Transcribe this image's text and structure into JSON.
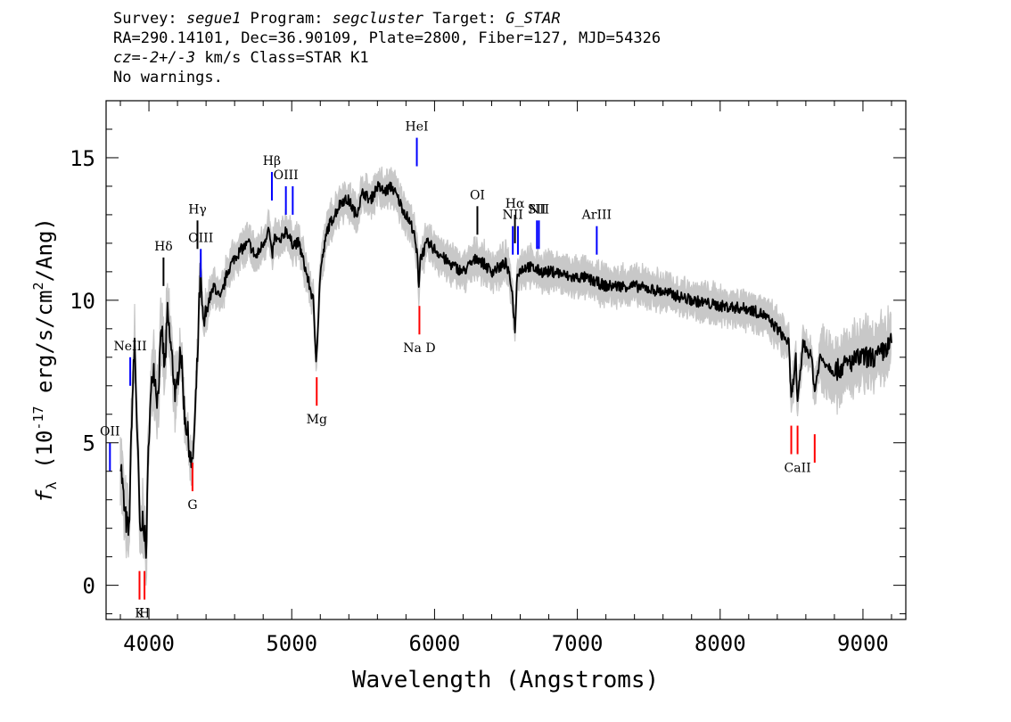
{
  "header": {
    "line1": {
      "survey_label": "Survey: ",
      "survey": "segue1",
      "program_label": " Program: ",
      "program": "segcluster",
      "target_label": " Target: ",
      "target": "G_STAR"
    },
    "line2": "RA=290.14101, Dec=36.90109, Plate=2800, Fiber=127, MJD=54326",
    "line3": {
      "cz": "cz=-2+/-3",
      "rest": " km/s Class=STAR K1"
    },
    "line4": "No warnings."
  },
  "chart_data": {
    "type": "line",
    "xlabel": "Wavelength (Angstroms)",
    "ylabel": "f_λ (10^-17 erg/s/cm^2/Ang)",
    "xlim": [
      3700,
      9300
    ],
    "ylim": [
      -1.2,
      17
    ],
    "x_ticks": [
      4000,
      5000,
      6000,
      7000,
      8000,
      9000
    ],
    "y_ticks": [
      0,
      5,
      10,
      15
    ],
    "series": [
      {
        "color": "#000000",
        "error_color": "#c8c8c8",
        "x": [
          3800,
          3830,
          3860,
          3880,
          3900,
          3920,
          3940,
          3960,
          3980,
          4000,
          4030,
          4060,
          4090,
          4110,
          4130,
          4160,
          4190,
          4220,
          4250,
          4280,
          4300,
          4320,
          4340,
          4360,
          4380,
          4420,
          4460,
          4500,
          4550,
          4600,
          4650,
          4700,
          4750,
          4800,
          4840,
          4861,
          4880,
          4920,
          4960,
          5000,
          5050,
          5100,
          5150,
          5170,
          5183,
          5200,
          5250,
          5300,
          5350,
          5400,
          5450,
          5500,
          5550,
          5600,
          5650,
          5700,
          5750,
          5800,
          5850,
          5880,
          5890,
          5900,
          5950,
          6000,
          6100,
          6200,
          6300,
          6400,
          6500,
          6540,
          6563,
          6580,
          6650,
          6750,
          6850,
          6950,
          7050,
          7200,
          7400,
          7600,
          7800,
          8000,
          8200,
          8300,
          8400,
          8480,
          8498,
          8530,
          8542,
          8580,
          8640,
          8662,
          8700,
          8800,
          8900,
          9000,
          9100,
          9200
        ],
        "y": [
          4.5,
          2.5,
          1.8,
          6.0,
          8.5,
          5.0,
          1.5,
          2.5,
          1.0,
          5.5,
          7.8,
          6.5,
          9.0,
          7.5,
          9.5,
          8.0,
          6.5,
          8.5,
          6.0,
          5.0,
          4.0,
          5.5,
          8.0,
          11.0,
          9.0,
          10.0,
          10.5,
          10.0,
          11.0,
          11.5,
          11.8,
          12.0,
          11.5,
          12.0,
          12.5,
          11.5,
          12.2,
          12.0,
          12.5,
          12.0,
          12.0,
          11.0,
          10.0,
          8.0,
          9.0,
          11.0,
          12.5,
          13.0,
          13.5,
          13.5,
          13.0,
          13.8,
          13.5,
          14.0,
          13.8,
          14.0,
          13.5,
          13.0,
          12.5,
          11.5,
          10.5,
          11.5,
          12.0,
          11.8,
          11.3,
          11.0,
          11.5,
          11.0,
          11.3,
          10.5,
          9.0,
          11.0,
          11.2,
          11.0,
          11.0,
          10.8,
          10.8,
          10.5,
          10.5,
          10.3,
          10.0,
          9.8,
          9.7,
          9.5,
          9.0,
          8.5,
          6.5,
          8.0,
          6.3,
          8.5,
          8.0,
          6.8,
          8.0,
          7.5,
          7.8,
          8.0,
          8.0,
          8.5
        ]
      }
    ],
    "annotations": [
      {
        "label": "OII",
        "x": 3727,
        "color": "blue",
        "position": "below",
        "y0": 4.0,
        "y1": 5.0
      },
      {
        "label": "NeIII",
        "x": 3869,
        "color": "blue",
        "position": "below",
        "y0": 7.0,
        "y1": 8.0
      },
      {
        "label": "Hδ",
        "x": 4102,
        "color": "black",
        "position": "below",
        "y0": 10.5,
        "y1": 11.5
      },
      {
        "label": "Hγ",
        "x": 4340,
        "color": "black",
        "position": "below",
        "y0": 11.8,
        "y1": 12.8
      },
      {
        "label": "OIII",
        "x": 4363,
        "color": "blue",
        "position": "below",
        "y0": 10.8,
        "y1": 11.8
      },
      {
        "label": "Hβ",
        "x": 4861,
        "color": "blue",
        "position": "below",
        "y0": 13.5,
        "y1": 14.5
      },
      {
        "label": "OIII",
        "x": 4959,
        "color": "blue",
        "position": "below",
        "y0": 13.0,
        "y1": 14.0
      },
      {
        "label": "",
        "x": 5007,
        "color": "blue",
        "position": "below",
        "y0": 13.0,
        "y1": 14.0
      },
      {
        "label": "HeI",
        "x": 5876,
        "color": "blue",
        "position": "below",
        "y0": 14.7,
        "y1": 15.7
      },
      {
        "label": "OI",
        "x": 6300,
        "color": "black",
        "position": "below",
        "y0": 12.3,
        "y1": 13.3
      },
      {
        "label": "NII",
        "x": 6548,
        "color": "blue",
        "position": "below",
        "y0": 11.6,
        "y1": 12.6
      },
      {
        "label": "Hα",
        "x": 6563,
        "color": "black",
        "position": "below",
        "y0": 12.0,
        "y1": 13.0
      },
      {
        "label": "",
        "x": 6584,
        "color": "blue",
        "position": "below",
        "y0": 11.6,
        "y1": 12.6
      },
      {
        "label": "SII",
        "x": 6717,
        "color": "blue",
        "position": "below",
        "y0": 11.8,
        "y1": 12.8
      },
      {
        "label": "NII",
        "x": 6731,
        "color": "blue",
        "position": "below",
        "y0": 11.8,
        "y1": 12.8
      },
      {
        "label": "ArIII",
        "x": 7136,
        "color": "blue",
        "position": "below",
        "y0": 11.6,
        "y1": 12.6
      },
      {
        "label": "K",
        "x": 3934,
        "color": "red",
        "position": "above",
        "y0": -0.5,
        "y1": 0.5
      },
      {
        "label": "H",
        "x": 3969,
        "color": "red",
        "position": "above",
        "y0": -0.5,
        "y1": 0.5
      },
      {
        "label": "G",
        "x": 4305,
        "color": "red",
        "position": "above",
        "y0": 3.3,
        "y1": 4.3
      },
      {
        "label": "Mg",
        "x": 5175,
        "color": "red",
        "position": "above",
        "y0": 6.3,
        "y1": 7.3
      },
      {
        "label": "Na D",
        "x": 5894,
        "color": "red",
        "position": "above",
        "y0": 8.8,
        "y1": 9.8
      },
      {
        "label": "",
        "x": 8498,
        "color": "red",
        "position": "above",
        "y0": 4.6,
        "y1": 5.6
      },
      {
        "label": "CaII",
        "x": 8542,
        "color": "red",
        "position": "above",
        "y0": 4.6,
        "y1": 5.6
      },
      {
        "label": "",
        "x": 8662,
        "color": "red",
        "position": "above",
        "y0": 4.3,
        "y1": 5.3
      }
    ]
  }
}
